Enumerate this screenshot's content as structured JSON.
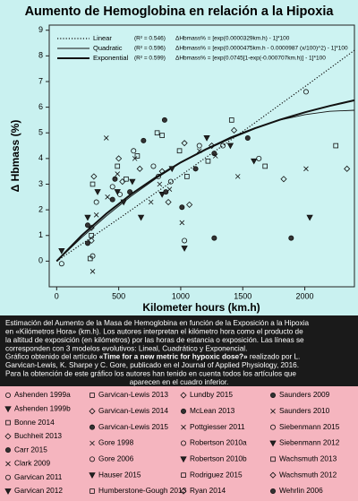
{
  "chart_data": {
    "type": "scatter",
    "title": "Aumento de Hemoglobina en relación a la Hipoxia",
    "x_label": "Kilometer hours (km.h)",
    "y_label": "Δ Hbmass (%)",
    "xlim": [
      -60,
      2400
    ],
    "ylim": [
      -1,
      9.2
    ],
    "xticks": [
      0,
      500,
      1000,
      1500,
      2000
    ],
    "yticks": [
      0,
      1,
      2,
      3,
      4,
      5,
      6,
      7,
      8,
      9
    ],
    "points": {
      "x": [
        40,
        40,
        270,
        280,
        250,
        290,
        290,
        250,
        280,
        280,
        250,
        320,
        320,
        330,
        290,
        300,
        450,
        410,
        450,
        490,
        490,
        500,
        470,
        490,
        510,
        540,
        560,
        530,
        590,
        630,
        620,
        610,
        650,
        670,
        700,
        760,
        780,
        680,
        810,
        850,
        870,
        830,
        820,
        850,
        850,
        900,
        880,
        910,
        920,
        930,
        990,
        1030,
        1010,
        1010,
        1030,
        1030,
        1050,
        1070,
        1120,
        1150,
        1150,
        1210,
        1220,
        1250,
        1270,
        1280,
        1340,
        1400,
        1410,
        1430,
        1540,
        1460,
        1630,
        1590,
        1680,
        1830,
        1890,
        2010,
        2010,
        2040,
        2250,
        2340,
        1270,
        400
      ],
      "y": [
        -0.1,
        0.4,
        0.1,
        0.8,
        1.4,
        -0.4,
        0.2,
        1.7,
        1.0,
        1.3,
        0.7,
        1.8,
        2.3,
        2.7,
        3.0,
        3.3,
        2.4,
        2.5,
        2.9,
        2.7,
        3.7,
        4.0,
        3.2,
        3.4,
        2.6,
        2.3,
        3.2,
        3.1,
        2.7,
        4.0,
        4.3,
        3.1,
        4.1,
        3.6,
        4.7,
        2.3,
        3.7,
        1.7,
        5.0,
        3.5,
        5.5,
        3.0,
        3.3,
        2.6,
        4.9,
        2.3,
        2.7,
        2.8,
        3.1,
        3.6,
        4.3,
        4.6,
        2.1,
        1.5,
        0.8,
        0.5,
        3.3,
        2.2,
        3.6,
        4.3,
        4.5,
        4.8,
        3.9,
        4.5,
        4.2,
        4.1,
        4.5,
        4.5,
        5.5,
        5.1,
        4.8,
        3.3,
        4.0,
        3.9,
        3.7,
        3.2,
        0.9,
        3.6,
        6.6,
        1.7,
        4.5,
        3.6,
        0.9,
        4.8
      ]
    },
    "series": [
      {
        "name": "Linear",
        "r2_label": "(R² = 0.546)",
        "formula": "ΔHbmass% = [exp(0.0000329km.h) - 1]*100",
        "color": "#111111",
        "dash": "dotted",
        "width": 1.2,
        "x": [
          0,
          200,
          400,
          600,
          800,
          1000,
          1200,
          1400,
          1600,
          1800,
          2000,
          2200,
          2400
        ],
        "values": [
          0,
          0.66,
          1.32,
          1.99,
          2.67,
          3.34,
          4.03,
          4.71,
          5.4,
          6.1,
          6.8,
          7.51,
          8.22
        ]
      },
      {
        "name": "Quadratic",
        "r2_label": "(R² = 0.596)",
        "formula": "ΔHbmass% = [exp(0.0000475km.h - 0.0000987 (x/100)^2) - 1]*100",
        "color": "#111111",
        "dash": "solid",
        "width": 0.9,
        "x": [
          0,
          200,
          400,
          600,
          800,
          1000,
          1200,
          1400,
          1600,
          1800,
          2000,
          2200,
          2400
        ],
        "values": [
          0,
          0.91,
          1.76,
          2.53,
          3.22,
          3.83,
          4.37,
          4.83,
          5.2,
          5.5,
          5.71,
          5.84,
          5.88
        ]
      },
      {
        "name": "Exponential",
        "r2_label": "(R² = 0.599)",
        "formula": "ΔHbmass% = [exp(0.0745[1-exp(-0.000707km.h)] - 1]*100",
        "color": "#111111",
        "dash": "solid",
        "width": 2,
        "x": [
          0,
          200,
          400,
          600,
          800,
          1000,
          1200,
          1400,
          1600,
          1800,
          2000,
          2200,
          2400
        ],
        "values": [
          0,
          0.99,
          1.85,
          2.61,
          3.27,
          3.85,
          4.35,
          4.79,
          5.18,
          5.51,
          5.8,
          6.05,
          6.27
        ]
      }
    ]
  },
  "caption": {
    "lines": [
      "Estimación del Aumento de la Masa de Hemoglobina en función de la Exposición a la Hipoxia",
      "en «Kilómetros Hora» (km.h). Los autores interpretan el kilómetro hora como el producto de",
      "la altitud de exposición (en kilómetros) por las horas de estancia o exposición. Las líneas se",
      "corresponden con 3 modelos evolutivos: Lineal, Cuadrático y Exponencial."
    ],
    "source_prefix": "Gráfico obtenido del artículo ",
    "source_title": "«Time for a new metric for hypoxic dose?»",
    "source_suffix": " realizado por L.",
    "more_lines": [
      "Garvican-Lewis, K. Sharpe y C. Gore, publicado en el Journal of Applied Physiology, 2016.",
      "Para la obtención de este gráfico los autores han tenido en cuenta todos los artículos que",
      "aparecen en el cuadro inferior."
    ]
  },
  "studies": [
    [
      "Ashenden 1999a",
      "Ashenden 1999b",
      "Bonne 2014",
      "Buchheit 2013",
      "Carr 2015",
      "Clark 2009",
      "Garvican 2011",
      "Garvican 2012"
    ],
    [
      "Garvican-Lewis 2013",
      "Garvican-Lewis 2014",
      "Garvican-Lewis 2015",
      "Gore 1998",
      "Gore 2006",
      "Hauser 2015",
      "Humberstone-Gough 2013"
    ],
    [
      "Lundby 2015",
      "McLean 2013",
      "Pottgiesser 2011",
      "Robertson 2010a",
      "Robertson 2010b",
      "Rodriguez 2015",
      "Ryan 2014"
    ],
    [
      "Saunders 2009",
      "Saunders 2010",
      "Siebenmann 2015",
      "Siebenmann 2012",
      "Wachsmuth 2013",
      "Wachsmuth 2012",
      "Wehrlin 2006"
    ]
  ]
}
